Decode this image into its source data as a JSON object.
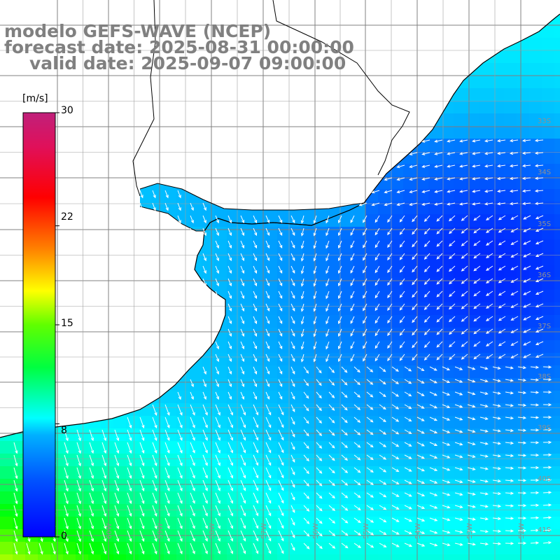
{
  "title": {
    "line1": "modelo GEFS-WAVE (NCEP)",
    "line2": "forecast date: 2025-08-31 00:00:00",
    "line3": "valid date: 2025-09-07 09:00:00"
  },
  "colorbar": {
    "unit": "[m/s]",
    "ticks": [
      "30",
      "22",
      "15",
      "8",
      "0"
    ],
    "tick_values": [
      30,
      22,
      15,
      8,
      0
    ],
    "colors": [
      "#0000ff",
      "#00a0ff",
      "#00ffff",
      "#00ff00",
      "#ffff00",
      "#ff8000",
      "#ff0000",
      "#d00060",
      "#c0207a"
    ]
  },
  "map": {
    "lat_labels": [
      "33S",
      "34S",
      "35S",
      "36S",
      "37S",
      "38S",
      "39S",
      "40S",
      "41S"
    ],
    "lon_labels": [
      "60W",
      "59W",
      "58W",
      "57W",
      "56W",
      "55W",
      "54W",
      "53W",
      "52W"
    ],
    "land_color": "#ffffff",
    "coast_color": "#000000",
    "grid_color": "#808080",
    "arrow_color": "#ffffff",
    "variable": "wind speed"
  }
}
